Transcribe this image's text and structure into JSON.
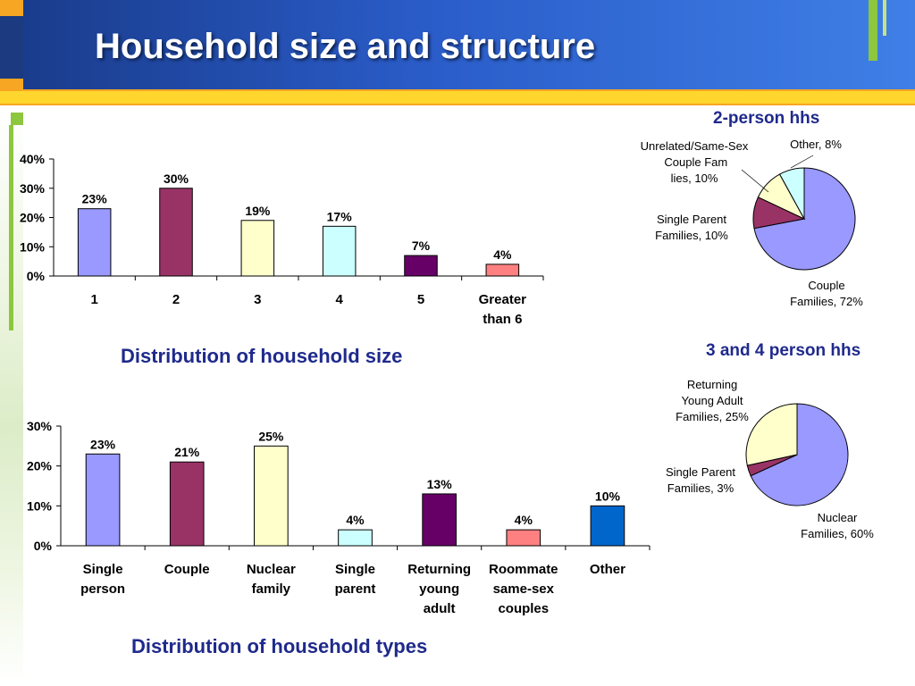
{
  "slide": {
    "title": "Household size and structure"
  },
  "chart_data": [
    {
      "type": "bar",
      "title": "Distribution of household size",
      "categories": [
        "1",
        "2",
        "3",
        "4",
        "5",
        "Greater than 6"
      ],
      "values": [
        23,
        30,
        19,
        17,
        7,
        4
      ],
      "value_labels": [
        "23%",
        "30%",
        "19%",
        "17%",
        "7%",
        "4%"
      ],
      "colors": [
        "#9999ff",
        "#993366",
        "#ffffcc",
        "#ccffff",
        "#660066",
        "#ff8080"
      ],
      "yticks": [
        "0%",
        "10%",
        "20%",
        "30%",
        "40%"
      ],
      "ylim": [
        0,
        40
      ],
      "grid": false
    },
    {
      "type": "bar",
      "title": "Distribution of household types",
      "categories": [
        "Single person",
        "Couple",
        "Nuclear family",
        "Single parent",
        "Returning young adult",
        "Roommate same-sex couples",
        "Other"
      ],
      "values": [
        23,
        21,
        25,
        4,
        13,
        4,
        10
      ],
      "value_labels": [
        "23%",
        "21%",
        "25%",
        "4%",
        "13%",
        "4%",
        "10%"
      ],
      "colors": [
        "#9999ff",
        "#993366",
        "#ffffcc",
        "#ccffff",
        "#660066",
        "#ff8080",
        "#0066cc"
      ],
      "yticks": [
        "0%",
        "10%",
        "20%",
        "30%"
      ],
      "ylim": [
        0,
        30
      ],
      "grid": false
    },
    {
      "type": "pie",
      "title": "2-person hhs",
      "labels": [
        "Couple Families, 72%",
        "Single Parent Families, 10%",
        "Unrelated/Same-Sex Couple Families, 10%",
        "Other, 8%"
      ],
      "values": [
        72,
        10,
        10,
        8
      ],
      "colors": [
        "#9999ff",
        "#993366",
        "#ffffcc",
        "#ccffff"
      ]
    },
    {
      "type": "pie",
      "title": "3 and 4 person hhs",
      "labels": [
        "Nuclear Families, 60%",
        "Single Parent Families, 3%",
        "Returning Young Adult Families, 25%"
      ],
      "values": [
        60,
        3,
        25
      ],
      "colors": [
        "#9999ff",
        "#993366",
        "#ffffcc"
      ]
    }
  ]
}
